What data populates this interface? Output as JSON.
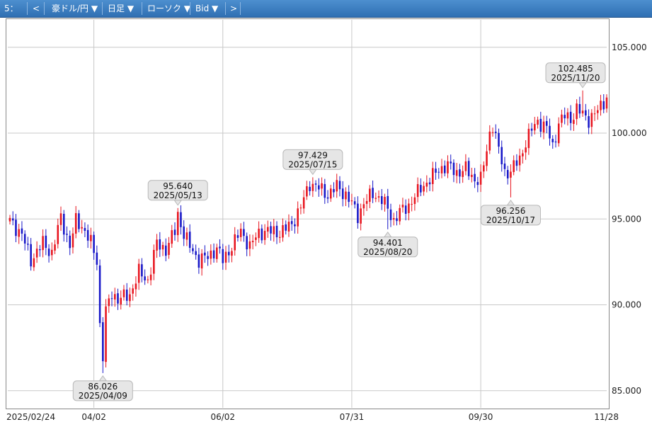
{
  "toolbar": {
    "window_label": "5：",
    "prev": "<",
    "pair": "豪ドル/円 ▼",
    "timeframe": "日足 ▼",
    "chart_style": "ローソク ▼",
    "price_side": "Bid ▼",
    "next": ">"
  },
  "colors": {
    "up": "#e8141e",
    "down": "#1616c8",
    "grid": "#c8c8c8",
    "callout_bg": "#e6e6e6"
  },
  "chart_data": {
    "type": "candlestick",
    "title": "",
    "xlabel": "",
    "ylabel": "",
    "ylim": [
      84.0,
      106.6
    ],
    "y_ticks": [
      {
        "value": 85.0,
        "label": "85.000"
      },
      {
        "value": 90.0,
        "label": "90.000"
      },
      {
        "value": 95.0,
        "label": "95.000"
      },
      {
        "value": 100.0,
        "label": "100.000"
      },
      {
        "value": 105.0,
        "label": "105.000"
      }
    ],
    "x_ticks": [
      "2025/02/24",
      "04/02",
      "06/02",
      "07/31",
      "09/30",
      "11/28"
    ],
    "x_tick_bars": [
      0,
      28,
      71,
      114,
      157,
      199
    ],
    "grid": true,
    "num_bars": 200,
    "anchors": [
      [
        0,
        94.9
      ],
      [
        4,
        94.1
      ],
      [
        7,
        92.6
      ],
      [
        11,
        93.6
      ],
      [
        14,
        93.0
      ],
      [
        17,
        95.1
      ],
      [
        20,
        93.4
      ],
      [
        22,
        94.9
      ],
      [
        24,
        94.6
      ],
      [
        27,
        93.6
      ],
      [
        29,
        92.6
      ],
      [
        30,
        88.8
      ],
      [
        31,
        87.0
      ],
      [
        32,
        89.6
      ],
      [
        34,
        90.7
      ],
      [
        36,
        90.3
      ],
      [
        40,
        90.6
      ],
      [
        43,
        91.9
      ],
      [
        46,
        91.4
      ],
      [
        49,
        93.6
      ],
      [
        52,
        93.2
      ],
      [
        55,
        94.3
      ],
      [
        56,
        95.3
      ],
      [
        58,
        94.1
      ],
      [
        60,
        93.4
      ],
      [
        63,
        92.6
      ],
      [
        66,
        92.8
      ],
      [
        69,
        93.3
      ],
      [
        71,
        92.6
      ],
      [
        74,
        93.4
      ],
      [
        77,
        94.3
      ],
      [
        80,
        93.4
      ],
      [
        83,
        94.2
      ],
      [
        86,
        94.3
      ],
      [
        90,
        94.2
      ],
      [
        94,
        94.7
      ],
      [
        97,
        95.7
      ],
      [
        100,
        97.1
      ],
      [
        103,
        96.8
      ],
      [
        106,
        96.4
      ],
      [
        109,
        96.9
      ],
      [
        112,
        96.4
      ],
      [
        114,
        95.9
      ],
      [
        116,
        95.2
      ],
      [
        118,
        95.9
      ],
      [
        121,
        96.5
      ],
      [
        124,
        96.1
      ],
      [
        126,
        95.6
      ],
      [
        128,
        94.9
      ],
      [
        130,
        95.4
      ],
      [
        133,
        95.8
      ],
      [
        137,
        96.8
      ],
      [
        140,
        97.3
      ],
      [
        143,
        97.9
      ],
      [
        146,
        98.1
      ],
      [
        149,
        97.7
      ],
      [
        152,
        97.9
      ],
      [
        155,
        97.3
      ],
      [
        157,
        97.3
      ],
      [
        159,
        99.0
      ],
      [
        160,
        100.0
      ],
      [
        161,
        100.5
      ],
      [
        163,
        99.0
      ],
      [
        165,
        97.7
      ],
      [
        167,
        97.8
      ],
      [
        170,
        98.5
      ],
      [
        172,
        99.5
      ],
      [
        174,
        100.2
      ],
      [
        176,
        100.7
      ],
      [
        179,
        100.3
      ],
      [
        181,
        99.2
      ],
      [
        183,
        100.6
      ],
      [
        185,
        101.0
      ],
      [
        187,
        100.8
      ],
      [
        189,
        101.4
      ],
      [
        191,
        101.1
      ],
      [
        193,
        100.8
      ],
      [
        196,
        101.3
      ],
      [
        199,
        102.1
      ]
    ],
    "annotations": [
      {
        "bar": 31,
        "price": 86.026,
        "value": "86.026",
        "date": "2025/04/09",
        "position": "below"
      },
      {
        "bar": 56,
        "price": 95.64,
        "value": "95.640",
        "date": "2025/05/13",
        "position": "above"
      },
      {
        "bar": 101,
        "price": 97.429,
        "value": "97.429",
        "date": "2025/07/15",
        "position": "above"
      },
      {
        "bar": 126,
        "price": 94.401,
        "value": "94.401",
        "date": "2025/08/20",
        "position": "below"
      },
      {
        "bar": 167,
        "price": 96.256,
        "value": "96.256",
        "date": "2025/10/17",
        "position": "below"
      },
      {
        "bar": 191,
        "price": 102.485,
        "value": "102.485",
        "date": "2025/11/20",
        "position": "above"
      }
    ]
  }
}
